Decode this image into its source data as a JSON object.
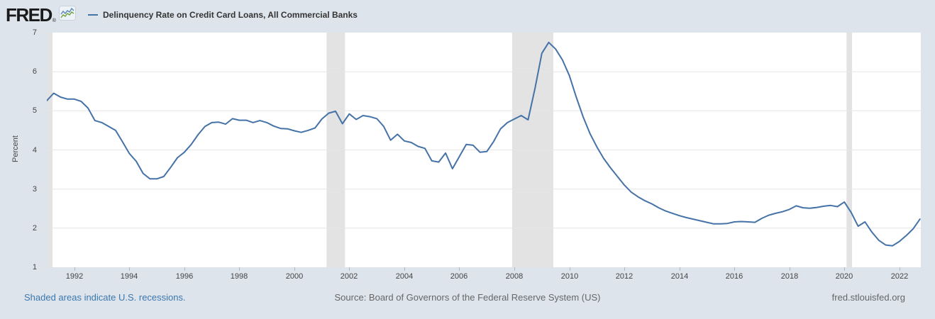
{
  "colors": {
    "background": "#dee4ec",
    "plot_background": "#ffffff",
    "line": "#4572a7",
    "recession_band": "#e3e3e3",
    "gridline": "#e6e6e6",
    "tick_text": "#444444",
    "logo_icon_blue": "#5b87b7",
    "logo_icon_green": "#74a33e"
  },
  "header": {
    "logo_text": "FRED",
    "registered_mark": "®",
    "series_title": "Delinquency Rate on Credit Card Loans, All Commercial Banks"
  },
  "footer": {
    "recession_note": "Shaded areas indicate U.S. recessions.",
    "source": "Source: Board of Governors of the Federal Reserve System (US)",
    "site": "fred.stlouisfed.org"
  },
  "chart_data": {
    "type": "line",
    "title": "Delinquency Rate on Credit Card Loans, All Commercial Banks",
    "ylabel": "Percent",
    "xlabel": "",
    "frequency": "quarterly",
    "x_start": 1991.0,
    "x_step": 0.25,
    "xlim": [
      1991.0,
      2022.78
    ],
    "ylim": [
      1,
      7
    ],
    "yticks": [
      1,
      2,
      3,
      4,
      5,
      6,
      7
    ],
    "xticks": [
      1992,
      1994,
      1996,
      1998,
      2000,
      2002,
      2004,
      2006,
      2008,
      2010,
      2012,
      2014,
      2016,
      2018,
      2020,
      2022
    ],
    "gridlines_y": [
      2,
      3,
      4,
      5,
      6
    ],
    "grid": "horizontal-only",
    "legend_position": "top-left",
    "recessions": [
      [
        1991.0,
        1991.21
      ],
      [
        2001.17,
        2001.84
      ],
      [
        2007.92,
        2009.42
      ],
      [
        2020.08,
        2020.28
      ]
    ],
    "values": [
      5.26,
      5.45,
      5.35,
      5.3,
      5.3,
      5.24,
      5.07,
      4.75,
      4.7,
      4.6,
      4.5,
      4.21,
      3.91,
      3.71,
      3.4,
      3.26,
      3.26,
      3.32,
      3.55,
      3.8,
      3.94,
      4.14,
      4.39,
      4.6,
      4.7,
      4.71,
      4.66,
      4.8,
      4.76,
      4.76,
      4.7,
      4.75,
      4.7,
      4.61,
      4.55,
      4.54,
      4.49,
      4.45,
      4.5,
      4.56,
      4.79,
      4.94,
      4.99,
      4.67,
      4.92,
      4.78,
      4.88,
      4.85,
      4.8,
      4.6,
      4.25,
      4.4,
      4.23,
      4.19,
      4.09,
      4.04,
      3.72,
      3.69,
      3.92,
      3.52,
      3.83,
      4.14,
      4.12,
      3.94,
      3.96,
      4.22,
      4.54,
      4.7,
      4.79,
      4.88,
      4.77,
      5.57,
      6.47,
      6.75,
      6.58,
      6.3,
      5.9,
      5.35,
      4.85,
      4.42,
      4.08,
      3.78,
      3.54,
      3.32,
      3.1,
      2.92,
      2.8,
      2.7,
      2.62,
      2.52,
      2.44,
      2.38,
      2.32,
      2.27,
      2.23,
      2.19,
      2.15,
      2.11,
      2.11,
      2.12,
      2.16,
      2.17,
      2.16,
      2.15,
      2.25,
      2.33,
      2.38,
      2.42,
      2.48,
      2.57,
      2.52,
      2.51,
      2.53,
      2.56,
      2.58,
      2.55,
      2.67,
      2.4,
      2.05,
      2.16,
      1.9,
      1.69,
      1.57,
      1.55,
      1.66,
      1.81,
      1.98,
      2.23
    ]
  }
}
